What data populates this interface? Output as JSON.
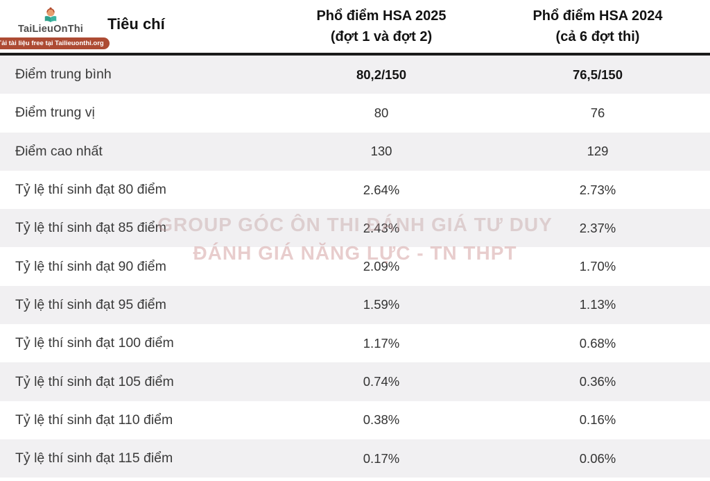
{
  "logo": {
    "brand": "TaiLieuOnThi",
    "badge": "Tải tài liệu free tại Tailieuonthi.org",
    "icon": "person-reading-book-icon",
    "badge_color": "#ad4b33"
  },
  "table": {
    "header": {
      "criteria": "Tiêu chí",
      "col2025_line1": "Phổ điểm HSA 2025",
      "col2025_line2": "(đợt 1 và đợt 2)",
      "col2024_line1": "Phổ điểm HSA 2024",
      "col2024_line2": "(cả 6 đợt thi)"
    },
    "rows": [
      {
        "label": "Điểm trung bình",
        "hsa2025": "80,2/150",
        "hsa2024": "76,5/150",
        "bold": true
      },
      {
        "label": "Điểm trung vị",
        "hsa2025": "80",
        "hsa2024": "76",
        "bold": false
      },
      {
        "label": "Điểm cao nhất",
        "hsa2025": "130",
        "hsa2024": "129",
        "bold": false
      },
      {
        "label": "Tỷ lệ thí sinh đạt 80 điểm",
        "hsa2025": "2.64%",
        "hsa2024": "2.73%",
        "bold": false
      },
      {
        "label": "Tỷ lệ thí sinh đạt 85 điểm",
        "hsa2025": "2.43%",
        "hsa2024": "2.37%",
        "bold": false
      },
      {
        "label": "Tỷ lệ thí sinh đạt 90 điểm",
        "hsa2025": "2.09%",
        "hsa2024": "1.70%",
        "bold": false
      },
      {
        "label": "Tỷ lệ thí sinh đạt 95 điểm",
        "hsa2025": "1.59%",
        "hsa2024": "1.13%",
        "bold": false
      },
      {
        "label": "Tỷ lệ thí sinh đạt 100 điểm",
        "hsa2025": "1.17%",
        "hsa2024": "0.68%",
        "bold": false
      },
      {
        "label": "Tỷ lệ thí sinh đạt 105 điểm",
        "hsa2025": "0.74%",
        "hsa2024": "0.36%",
        "bold": false
      },
      {
        "label": "Tỷ lệ thí sinh đạt 110 điểm",
        "hsa2025": "0.38%",
        "hsa2024": "0.16%",
        "bold": false
      },
      {
        "label": "Tỷ lệ thí sinh đạt 115 điểm",
        "hsa2025": "0.17%",
        "hsa2024": "0.06%",
        "bold": false
      }
    ]
  },
  "watermark": {
    "line1": "GROUP GÓC ÔN THI ĐÁNH GIÁ TƯ DUY",
    "line2": "ĐÁNH GIÁ NĂNG LỰC - TN THPT"
  },
  "colors": {
    "stripe": "#f1f0f2",
    "header_rule": "#1b1b1b",
    "badge": "#ad4b33",
    "watermark": "#d7a5a5"
  },
  "chart_data": {
    "type": "table",
    "columns": [
      "Tiêu chí",
      "Phổ điểm HSA 2025 (đợt 1 và đợt 2)",
      "Phổ điểm HSA 2024 (cả 6 đợt thi)"
    ],
    "rows": [
      [
        "Điểm trung bình",
        "80,2/150",
        "76,5/150"
      ],
      [
        "Điểm trung vị",
        "80",
        "76"
      ],
      [
        "Điểm cao nhất",
        "130",
        "129"
      ],
      [
        "Tỷ lệ thí sinh đạt 80 điểm",
        "2.64%",
        "2.73%"
      ],
      [
        "Tỷ lệ thí sinh đạt 85 điểm",
        "2.43%",
        "2.37%"
      ],
      [
        "Tỷ lệ thí sinh đạt 90 điểm",
        "2.09%",
        "1.70%"
      ],
      [
        "Tỷ lệ thí sinh đạt 95 điểm",
        "1.59%",
        "1.13%"
      ],
      [
        "Tỷ lệ thí sinh đạt 100 điểm",
        "1.17%",
        "0.68%"
      ],
      [
        "Tỷ lệ thí sinh đạt 105 điểm",
        "0.74%",
        "0.36%"
      ],
      [
        "Tỷ lệ thí sinh đạt 110 điểm",
        "0.38%",
        "0.16%"
      ],
      [
        "Tỷ lệ thí sinh đạt 115 điểm",
        "0.17%",
        "0.06%"
      ]
    ]
  }
}
